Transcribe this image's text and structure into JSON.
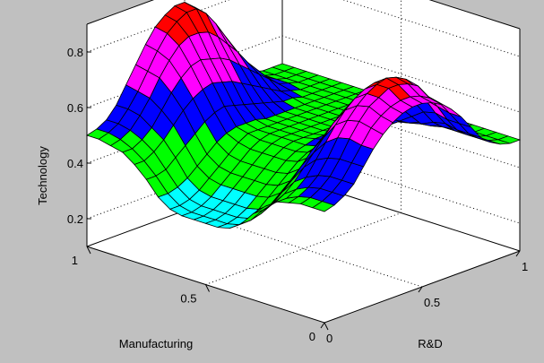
{
  "chart_data": {
    "type": "surface",
    "title": "",
    "xlabel": "R&D",
    "ylabel": "Manufacturing",
    "zlabel": "Technology",
    "xlim": [
      0,
      1
    ],
    "ylim": [
      0,
      1
    ],
    "zlim": [
      0.1,
      0.9
    ],
    "x_ticks": [
      "0",
      "0.5",
      "1"
    ],
    "y_ticks": [
      "0",
      "0.5",
      "1"
    ],
    "z_ticks": [
      "0.2",
      "0.4",
      "0.6",
      "0.8"
    ],
    "grid": true,
    "colormap": [
      "#00ffff",
      "#00ff00",
      "#0000ff",
      "#ff00ff",
      "#ff0000"
    ],
    "background": "#c0c0c0",
    "axes_background": "#ffffff",
    "x": [
      0,
      0.05,
      0.1,
      0.15,
      0.2,
      0.25,
      0.3,
      0.35,
      0.4,
      0.45,
      0.5,
      0.55,
      0.6,
      0.65,
      0.7,
      0.75,
      0.8,
      0.85,
      0.9,
      0.95,
      1
    ],
    "y": [
      0,
      0.05,
      0.1,
      0.15,
      0.2,
      0.25,
      0.3,
      0.35,
      0.4,
      0.45,
      0.5,
      0.55,
      0.6,
      0.65,
      0.7,
      0.75,
      0.8,
      0.85,
      0.9,
      0.95,
      1
    ],
    "z_rows_by_manufacturing": [
      [
        0.5,
        0.51,
        0.53,
        0.56,
        0.61,
        0.66,
        0.7,
        0.73,
        0.75,
        0.76,
        0.76,
        0.75,
        0.73,
        0.7,
        0.66,
        0.61,
        0.56,
        0.53,
        0.51,
        0.5,
        0.5
      ],
      [
        0.5,
        0.51,
        0.53,
        0.56,
        0.61,
        0.66,
        0.71,
        0.74,
        0.76,
        0.77,
        0.77,
        0.76,
        0.74,
        0.71,
        0.66,
        0.61,
        0.56,
        0.53,
        0.51,
        0.5,
        0.5
      ],
      [
        0.5,
        0.51,
        0.53,
        0.56,
        0.61,
        0.67,
        0.72,
        0.76,
        0.78,
        0.8,
        0.8,
        0.79,
        0.77,
        0.72,
        0.67,
        0.61,
        0.56,
        0.53,
        0.51,
        0.5,
        0.5
      ],
      [
        0.49,
        0.5,
        0.52,
        0.55,
        0.6,
        0.66,
        0.71,
        0.75,
        0.78,
        0.8,
        0.81,
        0.8,
        0.78,
        0.74,
        0.68,
        0.62,
        0.57,
        0.53,
        0.51,
        0.5,
        0.5
      ],
      [
        0.48,
        0.48,
        0.5,
        0.53,
        0.58,
        0.63,
        0.68,
        0.72,
        0.75,
        0.77,
        0.78,
        0.77,
        0.75,
        0.71,
        0.66,
        0.61,
        0.56,
        0.53,
        0.51,
        0.5,
        0.5
      ],
      [
        0.45,
        0.45,
        0.47,
        0.5,
        0.54,
        0.58,
        0.62,
        0.66,
        0.69,
        0.71,
        0.72,
        0.71,
        0.69,
        0.66,
        0.62,
        0.58,
        0.54,
        0.52,
        0.51,
        0.5,
        0.5
      ],
      [
        0.41,
        0.41,
        0.42,
        0.45,
        0.48,
        0.52,
        0.56,
        0.59,
        0.61,
        0.63,
        0.64,
        0.63,
        0.61,
        0.59,
        0.57,
        0.55,
        0.53,
        0.52,
        0.51,
        0.5,
        0.5
      ],
      [
        0.36,
        0.36,
        0.37,
        0.39,
        0.42,
        0.45,
        0.48,
        0.51,
        0.53,
        0.54,
        0.55,
        0.55,
        0.55,
        0.54,
        0.53,
        0.52,
        0.52,
        0.51,
        0.5,
        0.5,
        0.5
      ],
      [
        0.33,
        0.33,
        0.34,
        0.36,
        0.39,
        0.42,
        0.45,
        0.48,
        0.5,
        0.51,
        0.52,
        0.52,
        0.52,
        0.52,
        0.51,
        0.51,
        0.51,
        0.5,
        0.5,
        0.5,
        0.5
      ],
      [
        0.32,
        0.32,
        0.33,
        0.35,
        0.38,
        0.41,
        0.44,
        0.47,
        0.49,
        0.5,
        0.51,
        0.51,
        0.51,
        0.51,
        0.51,
        0.5,
        0.5,
        0.5,
        0.5,
        0.5,
        0.5
      ],
      [
        0.32,
        0.32,
        0.33,
        0.35,
        0.38,
        0.41,
        0.44,
        0.47,
        0.49,
        0.5,
        0.5,
        0.5,
        0.5,
        0.5,
        0.5,
        0.5,
        0.5,
        0.5,
        0.5,
        0.5,
        0.5
      ],
      [
        0.32,
        0.32,
        0.33,
        0.35,
        0.38,
        0.41,
        0.44,
        0.47,
        0.49,
        0.5,
        0.5,
        0.5,
        0.5,
        0.5,
        0.5,
        0.5,
        0.5,
        0.5,
        0.5,
        0.5,
        0.5
      ],
      [
        0.32,
        0.32,
        0.33,
        0.35,
        0.38,
        0.41,
        0.44,
        0.47,
        0.49,
        0.5,
        0.5,
        0.5,
        0.5,
        0.5,
        0.5,
        0.5,
        0.5,
        0.5,
        0.5,
        0.5,
        0.5
      ],
      [
        0.33,
        0.33,
        0.34,
        0.36,
        0.39,
        0.42,
        0.45,
        0.48,
        0.5,
        0.5,
        0.5,
        0.5,
        0.5,
        0.5,
        0.5,
        0.5,
        0.5,
        0.5,
        0.5,
        0.5,
        0.5
      ],
      [
        0.36,
        0.36,
        0.37,
        0.39,
        0.42,
        0.45,
        0.48,
        0.5,
        0.51,
        0.51,
        0.51,
        0.5,
        0.5,
        0.5,
        0.5,
        0.5,
        0.5,
        0.5,
        0.5,
        0.5,
        0.5
      ],
      [
        0.41,
        0.41,
        0.42,
        0.45,
        0.48,
        0.51,
        0.54,
        0.56,
        0.57,
        0.56,
        0.55,
        0.54,
        0.53,
        0.52,
        0.51,
        0.51,
        0.5,
        0.5,
        0.5,
        0.5,
        0.5
      ],
      [
        0.45,
        0.45,
        0.47,
        0.5,
        0.54,
        0.58,
        0.61,
        0.63,
        0.64,
        0.63,
        0.62,
        0.6,
        0.58,
        0.56,
        0.54,
        0.52,
        0.51,
        0.5,
        0.5,
        0.5,
        0.5
      ],
      [
        0.48,
        0.48,
        0.5,
        0.53,
        0.58,
        0.63,
        0.67,
        0.7,
        0.71,
        0.7,
        0.69,
        0.67,
        0.64,
        0.61,
        0.58,
        0.55,
        0.52,
        0.51,
        0.5,
        0.5,
        0.5
      ],
      [
        0.49,
        0.5,
        0.52,
        0.56,
        0.61,
        0.67,
        0.72,
        0.76,
        0.78,
        0.78,
        0.77,
        0.74,
        0.7,
        0.66,
        0.61,
        0.57,
        0.53,
        0.51,
        0.5,
        0.5,
        0.5
      ],
      [
        0.5,
        0.51,
        0.53,
        0.57,
        0.62,
        0.68,
        0.74,
        0.79,
        0.82,
        0.84,
        0.84,
        0.81,
        0.76,
        0.7,
        0.64,
        0.58,
        0.54,
        0.51,
        0.5,
        0.5,
        0.5
      ],
      [
        0.5,
        0.51,
        0.53,
        0.57,
        0.63,
        0.69,
        0.75,
        0.8,
        0.83,
        0.85,
        0.85,
        0.82,
        0.77,
        0.71,
        0.65,
        0.59,
        0.54,
        0.51,
        0.5,
        0.5,
        0.5
      ]
    ]
  }
}
